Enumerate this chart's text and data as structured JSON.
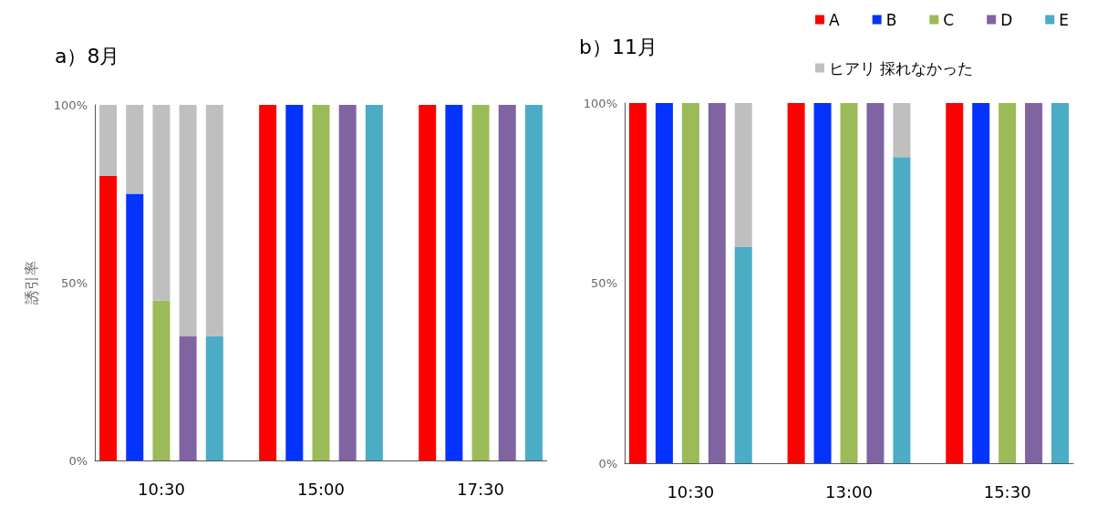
{
  "chart_data": [
    {
      "type": "bar",
      "title": "a）8月",
      "ylabel": "誘引率",
      "stacked": true,
      "categories": [
        null,
        null,
        "10:30",
        null,
        null,
        null,
        null,
        null,
        "15:00",
        null,
        null,
        null,
        null,
        null,
        "17:30",
        null,
        null
      ],
      "ylim": [
        0,
        100
      ],
      "yticks": [
        {
          "value": 0,
          "label": "0%"
        },
        {
          "value": 50,
          "label": "50%"
        },
        {
          "value": 100,
          "label": "100%"
        }
      ],
      "grid": false,
      "legend": false,
      "series": [
        {
          "color": "#ff0000",
          "values": [
            80,
            null,
            null,
            null,
            null,
            null,
            100,
            null,
            null,
            null,
            null,
            null,
            100,
            null,
            null,
            null,
            null
          ]
        },
        {
          "color": "#0433ff",
          "values": [
            null,
            75,
            null,
            null,
            null,
            null,
            null,
            100,
            null,
            null,
            null,
            null,
            null,
            100,
            null,
            null,
            null
          ]
        },
        {
          "color": "#9bbb59",
          "values": [
            null,
            null,
            45,
            null,
            null,
            null,
            null,
            null,
            100,
            null,
            null,
            null,
            null,
            null,
            100,
            null,
            null
          ]
        },
        {
          "color": "#8064a2",
          "values": [
            null,
            null,
            null,
            35,
            null,
            null,
            null,
            null,
            null,
            100,
            null,
            null,
            null,
            null,
            null,
            100,
            null
          ]
        },
        {
          "color": "#4bacc6",
          "values": [
            null,
            null,
            null,
            null,
            35,
            null,
            null,
            null,
            null,
            null,
            100,
            null,
            null,
            null,
            null,
            null,
            100
          ]
        },
        {
          "color": "#bfbfbf",
          "values": [
            20,
            25,
            55,
            65,
            65,
            null,
            0,
            0,
            0,
            0,
            0,
            null,
            0,
            0,
            0,
            0,
            0
          ]
        }
      ]
    },
    {
      "type": "bar",
      "title": "b）11月",
      "stacked": true,
      "categories": [
        null,
        null,
        "10:30",
        null,
        null,
        null,
        null,
        null,
        "13:00",
        null,
        null,
        null,
        null,
        null,
        "15:30",
        null,
        null
      ],
      "ylim": [
        0,
        100
      ],
      "yticks": [
        {
          "value": 0,
          "label": "0%"
        },
        {
          "value": 50,
          "label": "50%"
        },
        {
          "value": 100,
          "label": "100%"
        }
      ],
      "grid": false,
      "legend": "top right",
      "series": [
        {
          "name": "A",
          "color": "#ff0000",
          "values": [
            100,
            null,
            null,
            null,
            null,
            null,
            100,
            null,
            null,
            null,
            null,
            null,
            100,
            null,
            null,
            null,
            null
          ]
        },
        {
          "name": "B",
          "color": "#0433ff",
          "values": [
            null,
            100,
            null,
            null,
            null,
            null,
            null,
            100,
            null,
            null,
            null,
            null,
            null,
            100,
            null,
            null,
            null
          ]
        },
        {
          "name": "C",
          "color": "#9bbb59",
          "values": [
            null,
            null,
            100,
            null,
            null,
            null,
            null,
            null,
            100,
            null,
            null,
            null,
            null,
            null,
            100,
            null,
            null
          ]
        },
        {
          "name": "D",
          "color": "#8064a2",
          "values": [
            null,
            null,
            null,
            100,
            null,
            null,
            null,
            null,
            null,
            100,
            null,
            null,
            null,
            null,
            null,
            100,
            null
          ]
        },
        {
          "name": "E",
          "color": "#4bacc6",
          "values": [
            null,
            null,
            null,
            null,
            60,
            null,
            null,
            null,
            null,
            null,
            85,
            null,
            null,
            null,
            null,
            null,
            100
          ]
        },
        {
          "name": "ヒアリ 採れなかった",
          "color": "#bfbfbf",
          "values": [
            0,
            0,
            0,
            0,
            40,
            null,
            0,
            0,
            0,
            0,
            15,
            null,
            0,
            0,
            0,
            0,
            0
          ]
        }
      ]
    }
  ]
}
